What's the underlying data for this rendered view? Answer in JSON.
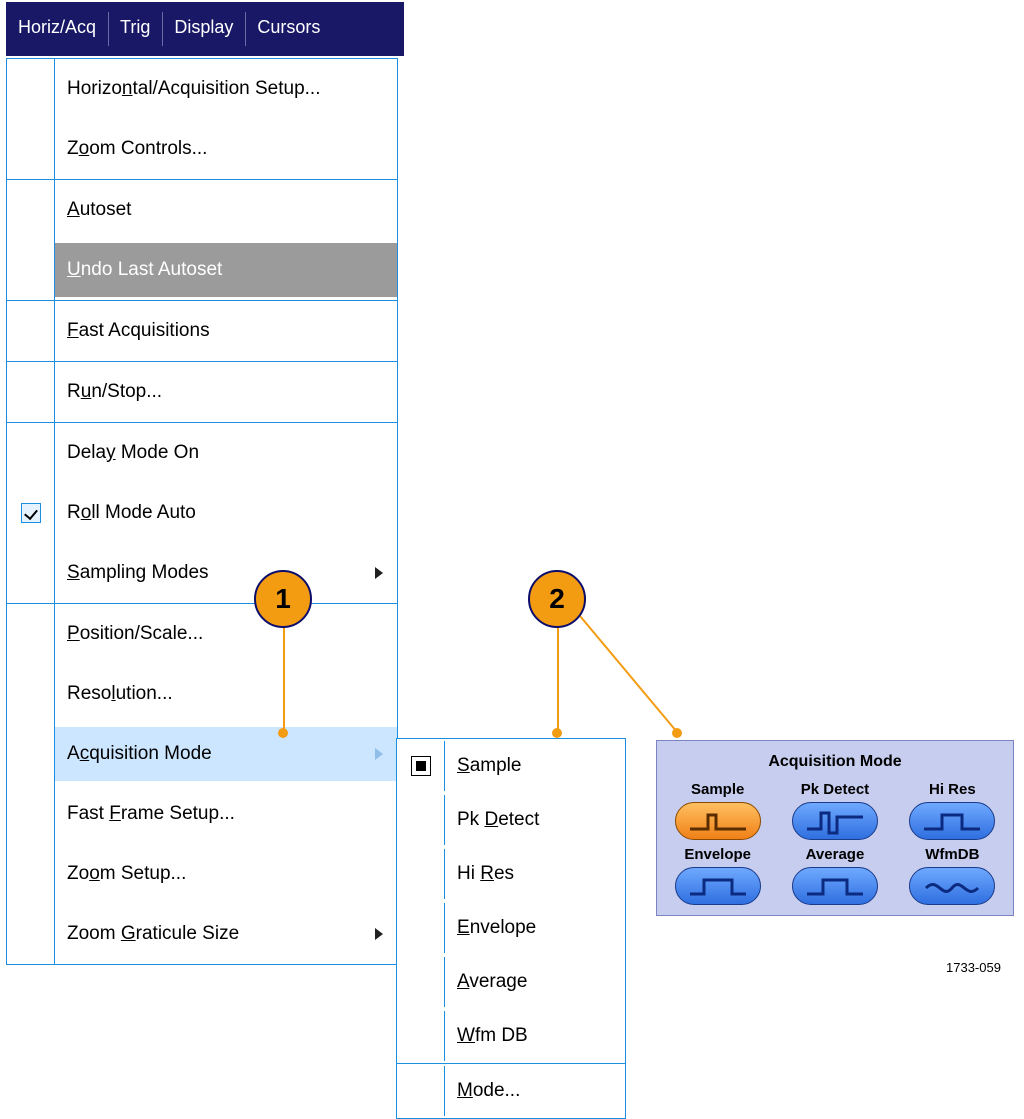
{
  "menubar": {
    "items": [
      {
        "label": "Horiz/Acq",
        "active": true
      },
      {
        "label": "Trig"
      },
      {
        "label": "Display"
      },
      {
        "label": "Cursors"
      }
    ]
  },
  "dropdown": {
    "groups": [
      {
        "rows": [
          {
            "label": "Horizontal/Acquisition Setup...",
            "u": 6
          },
          {
            "label": "Zoom Controls...",
            "u": 1
          }
        ]
      },
      {
        "rows": [
          {
            "label": "Autoset",
            "u": 0
          },
          {
            "label": "Undo Last Autoset",
            "u": 0,
            "disabled": true
          }
        ]
      },
      {
        "rows": [
          {
            "label": "Fast Acquisitions",
            "u": 0
          }
        ]
      },
      {
        "rows": [
          {
            "label": "Run/Stop...",
            "u": 1
          }
        ]
      },
      {
        "rows": [
          {
            "label": "Delay Mode On",
            "u": 4
          },
          {
            "label": "Roll Mode Auto",
            "u": 1,
            "check": true
          },
          {
            "label": "Sampling Modes",
            "u": 0,
            "arrow": true
          }
        ]
      },
      {
        "rows": [
          {
            "label": "Position/Scale...",
            "u": 0
          },
          {
            "label": "Resolution...",
            "u": 4
          },
          {
            "label": "Acquisition Mode",
            "u": 1,
            "arrow": true,
            "highlight": true
          },
          {
            "label": "Fast Frame Setup...",
            "u": 5
          },
          {
            "label": "Zoom Setup...",
            "u": 2
          },
          {
            "label": "Zoom Graticule Size",
            "u": 5,
            "arrow": true
          }
        ]
      }
    ]
  },
  "submenu": {
    "groups": [
      {
        "rows": [
          {
            "label": "Sample",
            "u": 0,
            "selected": true
          },
          {
            "label": "Pk Detect",
            "u": 3
          },
          {
            "label": "Hi Res",
            "u": 3
          },
          {
            "label": "Envelope",
            "u": 0
          },
          {
            "label": "Average",
            "u": 0
          },
          {
            "label": "Wfm DB",
            "u": 0
          }
        ]
      },
      {
        "rows": [
          {
            "label": "Mode...",
            "u": 0
          }
        ]
      }
    ]
  },
  "callouts": {
    "one": "1",
    "two": "2"
  },
  "acq_panel": {
    "title": "Acquisition Mode",
    "buttons": [
      {
        "label": "Sample",
        "selected": true,
        "wave": "sample"
      },
      {
        "label": "Pk Detect",
        "wave": "pk"
      },
      {
        "label": "Hi Res",
        "wave": "hires"
      },
      {
        "label": "Envelope",
        "wave": "env"
      },
      {
        "label": "Average",
        "wave": "avg"
      },
      {
        "label": "WfmDB",
        "wave": "wfmdb"
      }
    ],
    "ref": "1733-059"
  },
  "colors": {
    "menubar_bg": "#181867",
    "menu_border": "#1c8edf",
    "highlight": "#cde6ff",
    "disabled_bg": "#9b9b9b",
    "callout_fill": "#f39c12",
    "panel_bg": "#c6cdee",
    "pill_blue": "#2f6fe0",
    "pill_orange": "#f08018"
  }
}
